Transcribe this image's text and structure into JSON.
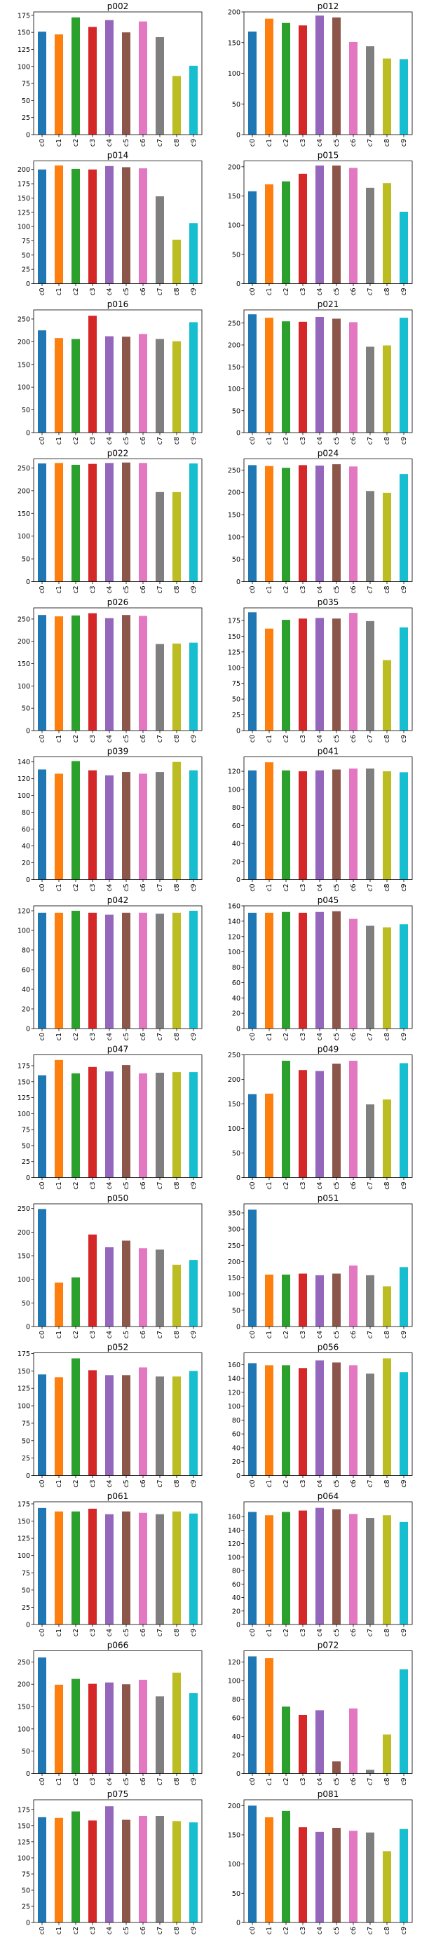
{
  "palette": [
    "#1f77b4",
    "#ff7f0e",
    "#2ca02c",
    "#d62728",
    "#9467bd",
    "#8c564b",
    "#e377c2",
    "#7f7f7f",
    "#bcbd22",
    "#17becf"
  ],
  "chart_data": [
    {
      "type": "bar",
      "title": "p002",
      "categories": [
        "c0",
        "c1",
        "c2",
        "c3",
        "c4",
        "c5",
        "c6",
        "c7",
        "c8",
        "c9"
      ],
      "values": [
        151,
        147,
        172,
        158,
        168,
        150,
        166,
        143,
        86,
        101
      ],
      "ylim": [
        0,
        180
      ],
      "yticks": [
        0,
        25,
        50,
        75,
        100,
        125,
        150,
        175
      ]
    },
    {
      "type": "bar",
      "title": "p012",
      "categories": [
        "c0",
        "c1",
        "c2",
        "c3",
        "c4",
        "c5",
        "c6",
        "c7",
        "c8",
        "c9"
      ],
      "values": [
        168,
        189,
        182,
        178,
        194,
        191,
        151,
        144,
        124,
        123
      ],
      "ylim": [
        0,
        200
      ],
      "yticks": [
        0,
        50,
        100,
        150,
        200
      ]
    },
    {
      "type": "bar",
      "title": "p014",
      "categories": [
        "c0",
        "c1",
        "c2",
        "c3",
        "c4",
        "c5",
        "c6",
        "c7",
        "c8",
        "c9"
      ],
      "values": [
        200,
        207,
        201,
        200,
        206,
        204,
        202,
        153,
        77,
        106
      ],
      "ylim": [
        0,
        215
      ],
      "yticks": [
        0,
        25,
        50,
        75,
        100,
        125,
        150,
        175,
        200
      ]
    },
    {
      "type": "bar",
      "title": "p015",
      "categories": [
        "c0",
        "c1",
        "c2",
        "c3",
        "c4",
        "c5",
        "c6",
        "c7",
        "c8",
        "c9"
      ],
      "values": [
        158,
        170,
        175,
        188,
        202,
        202,
        198,
        164,
        172,
        123
      ],
      "ylim": [
        0,
        210
      ],
      "yticks": [
        0,
        50,
        100,
        150,
        200
      ]
    },
    {
      "type": "bar",
      "title": "p016",
      "categories": [
        "c0",
        "c1",
        "c2",
        "c3",
        "c4",
        "c5",
        "c6",
        "c7",
        "c8",
        "c9"
      ],
      "values": [
        225,
        208,
        206,
        257,
        212,
        211,
        217,
        206,
        201,
        243
      ],
      "ylim": [
        0,
        270
      ],
      "yticks": [
        0,
        50,
        100,
        150,
        200,
        250
      ]
    },
    {
      "type": "bar",
      "title": "p021",
      "categories": [
        "c0",
        "c1",
        "c2",
        "c3",
        "c4",
        "c5",
        "c6",
        "c7",
        "c8",
        "c9"
      ],
      "values": [
        270,
        262,
        254,
        253,
        264,
        260,
        252,
        196,
        199,
        262
      ],
      "ylim": [
        0,
        280
      ],
      "yticks": [
        0,
        50,
        100,
        150,
        200,
        250
      ]
    },
    {
      "type": "bar",
      "title": "p022",
      "categories": [
        "c0",
        "c1",
        "c2",
        "c3",
        "c4",
        "c5",
        "c6",
        "c7",
        "c8",
        "c9"
      ],
      "values": [
        260,
        261,
        257,
        259,
        261,
        262,
        261,
        197,
        197,
        260
      ],
      "ylim": [
        0,
        270
      ],
      "yticks": [
        0,
        50,
        100,
        150,
        200,
        250
      ]
    },
    {
      "type": "bar",
      "title": "p024",
      "categories": [
        "c0",
        "c1",
        "c2",
        "c3",
        "c4",
        "c5",
        "c6",
        "c7",
        "c8",
        "c9"
      ],
      "values": [
        261,
        259,
        255,
        261,
        260,
        263,
        258,
        203,
        199,
        241
      ],
      "ylim": [
        0,
        275
      ],
      "yticks": [
        0,
        50,
        100,
        150,
        200,
        250
      ]
    },
    {
      "type": "bar",
      "title": "p026",
      "categories": [
        "c0",
        "c1",
        "c2",
        "c3",
        "c4",
        "c5",
        "c6",
        "c7",
        "c8",
        "c9"
      ],
      "values": [
        259,
        256,
        258,
        263,
        252,
        259,
        257,
        194,
        195,
        197
      ],
      "ylim": [
        0,
        275
      ],
      "yticks": [
        0,
        50,
        100,
        150,
        200,
        250
      ]
    },
    {
      "type": "bar",
      "title": "p035",
      "categories": [
        "c0",
        "c1",
        "c2",
        "c3",
        "c4",
        "c5",
        "c6",
        "c7",
        "c8",
        "c9"
      ],
      "values": [
        188,
        162,
        176,
        178,
        179,
        178,
        187,
        174,
        112,
        164
      ],
      "ylim": [
        0,
        195
      ],
      "yticks": [
        0,
        25,
        50,
        75,
        100,
        125,
        150,
        175
      ]
    },
    {
      "type": "bar",
      "title": "p039",
      "categories": [
        "c0",
        "c1",
        "c2",
        "c3",
        "c4",
        "c5",
        "c6",
        "c7",
        "c8",
        "c9"
      ],
      "values": [
        131,
        126,
        141,
        130,
        124,
        128,
        126,
        128,
        140,
        130
      ],
      "ylim": [
        0,
        146
      ],
      "yticks": [
        0,
        20,
        40,
        60,
        80,
        100,
        120,
        140
      ]
    },
    {
      "type": "bar",
      "title": "p041",
      "categories": [
        "c0",
        "c1",
        "c2",
        "c3",
        "c4",
        "c5",
        "c6",
        "c7",
        "c8",
        "c9"
      ],
      "values": [
        121,
        130,
        121,
        120,
        121,
        122,
        123,
        123,
        120,
        119
      ],
      "ylim": [
        0,
        136
      ],
      "yticks": [
        0,
        20,
        40,
        60,
        80,
        100,
        120
      ]
    },
    {
      "type": "bar",
      "title": "p042",
      "categories": [
        "c0",
        "c1",
        "c2",
        "c3",
        "c4",
        "c5",
        "c6",
        "c7",
        "c8",
        "c9"
      ],
      "values": [
        118,
        118,
        120,
        118,
        116,
        118,
        118,
        117,
        118,
        120
      ],
      "ylim": [
        0,
        125
      ],
      "yticks": [
        0,
        20,
        40,
        60,
        80,
        100,
        120
      ]
    },
    {
      "type": "bar",
      "title": "p045",
      "categories": [
        "c0",
        "c1",
        "c2",
        "c3",
        "c4",
        "c5",
        "c6",
        "c7",
        "c8",
        "c9"
      ],
      "values": [
        151,
        151,
        152,
        151,
        152,
        153,
        143,
        134,
        132,
        136
      ],
      "ylim": [
        0,
        160
      ],
      "yticks": [
        0,
        20,
        40,
        60,
        80,
        100,
        120,
        140,
        160
      ]
    },
    {
      "type": "bar",
      "title": "p047",
      "categories": [
        "c0",
        "c1",
        "c2",
        "c3",
        "c4",
        "c5",
        "c6",
        "c7",
        "c8",
        "c9"
      ],
      "values": [
        160,
        184,
        163,
        173,
        166,
        176,
        163,
        164,
        165,
        165
      ],
      "ylim": [
        0,
        192
      ],
      "yticks": [
        0,
        25,
        50,
        75,
        100,
        125,
        150,
        175
      ]
    },
    {
      "type": "bar",
      "title": "p049",
      "categories": [
        "c0",
        "c1",
        "c2",
        "c3",
        "c4",
        "c5",
        "c6",
        "c7",
        "c8",
        "c9"
      ],
      "values": [
        170,
        171,
        238,
        219,
        217,
        232,
        238,
        149,
        159,
        233
      ],
      "ylim": [
        0,
        250
      ],
      "yticks": [
        0,
        50,
        100,
        150,
        200,
        250
      ]
    },
    {
      "type": "bar",
      "title": "p050",
      "categories": [
        "c0",
        "c1",
        "c2",
        "c3",
        "c4",
        "c5",
        "c6",
        "c7",
        "c8",
        "c9"
      ],
      "values": [
        249,
        93,
        104,
        195,
        168,
        182,
        166,
        163,
        131,
        141
      ],
      "ylim": [
        0,
        260
      ],
      "yticks": [
        0,
        50,
        100,
        150,
        200,
        250
      ]
    },
    {
      "type": "bar",
      "title": "p051",
      "categories": [
        "c0",
        "c1",
        "c2",
        "c3",
        "c4",
        "c5",
        "c6",
        "c7",
        "c8",
        "c9"
      ],
      "values": [
        360,
        160,
        160,
        163,
        158,
        163,
        188,
        158,
        124,
        183
      ],
      "ylim": [
        0,
        378
      ],
      "yticks": [
        0,
        50,
        100,
        150,
        200,
        250,
        300,
        350
      ]
    },
    {
      "type": "bar",
      "title": "p052",
      "categories": [
        "c0",
        "c1",
        "c2",
        "c3",
        "c4",
        "c5",
        "c6",
        "c7",
        "c8",
        "c9"
      ],
      "values": [
        145,
        141,
        168,
        151,
        144,
        144,
        155,
        142,
        142,
        150
      ],
      "ylim": [
        0,
        176
      ],
      "yticks": [
        0,
        25,
        50,
        75,
        100,
        125,
        150,
        175
      ]
    },
    {
      "type": "bar",
      "title": "p056",
      "categories": [
        "c0",
        "c1",
        "c2",
        "c3",
        "c4",
        "c5",
        "c6",
        "c7",
        "c8",
        "c9"
      ],
      "values": [
        162,
        159,
        159,
        155,
        166,
        163,
        159,
        147,
        169,
        149
      ],
      "ylim": [
        0,
        177
      ],
      "yticks": [
        0,
        20,
        40,
        60,
        80,
        100,
        120,
        140,
        160
      ]
    },
    {
      "type": "bar",
      "title": "p061",
      "categories": [
        "c0",
        "c1",
        "c2",
        "c3",
        "c4",
        "c5",
        "c6",
        "c7",
        "c8",
        "c9"
      ],
      "values": [
        169,
        164,
        164,
        168,
        160,
        164,
        162,
        160,
        164,
        161
      ],
      "ylim": [
        0,
        178
      ],
      "yticks": [
        0,
        25,
        50,
        75,
        100,
        125,
        150,
        175
      ]
    },
    {
      "type": "bar",
      "title": "p064",
      "categories": [
        "c0",
        "c1",
        "c2",
        "c3",
        "c4",
        "c5",
        "c6",
        "c7",
        "c8",
        "c9"
      ],
      "values": [
        167,
        162,
        167,
        169,
        173,
        171,
        164,
        158,
        162,
        152
      ],
      "ylim": [
        0,
        182
      ],
      "yticks": [
        0,
        20,
        40,
        60,
        80,
        100,
        120,
        140,
        160
      ]
    },
    {
      "type": "bar",
      "title": "p066",
      "categories": [
        "c0",
        "c1",
        "c2",
        "c3",
        "c4",
        "c5",
        "c6",
        "c7",
        "c8",
        "c9"
      ],
      "values": [
        260,
        199,
        212,
        201,
        204,
        200,
        210,
        173,
        226,
        180
      ],
      "ylim": [
        0,
        275
      ],
      "yticks": [
        0,
        50,
        100,
        150,
        200,
        250
      ]
    },
    {
      "type": "bar",
      "title": "p072",
      "categories": [
        "c0",
        "c1",
        "c2",
        "c3",
        "c4",
        "c5",
        "c6",
        "c7",
        "c8",
        "c9"
      ],
      "values": [
        126,
        124,
        72,
        63,
        68,
        13,
        70,
        4,
        42,
        112
      ],
      "ylim": [
        0,
        132
      ],
      "yticks": [
        0,
        20,
        40,
        60,
        80,
        100,
        120
      ]
    },
    {
      "type": "bar",
      "title": "p075",
      "categories": [
        "c0",
        "c1",
        "c2",
        "c3",
        "c4",
        "c5",
        "c6",
        "c7",
        "c8",
        "c9"
      ],
      "values": [
        163,
        162,
        172,
        158,
        180,
        159,
        165,
        165,
        157,
        155
      ],
      "ylim": [
        0,
        190
      ],
      "yticks": [
        0,
        25,
        50,
        75,
        100,
        125,
        150,
        175
      ]
    },
    {
      "type": "bar",
      "title": "p081",
      "categories": [
        "c0",
        "c1",
        "c2",
        "c3",
        "c4",
        "c5",
        "c6",
        "c7",
        "c8",
        "c9"
      ],
      "values": [
        200,
        180,
        191,
        163,
        155,
        162,
        157,
        154,
        122,
        160
      ],
      "ylim": [
        0,
        210
      ],
      "yticks": [
        0,
        50,
        100,
        150,
        200
      ]
    }
  ]
}
